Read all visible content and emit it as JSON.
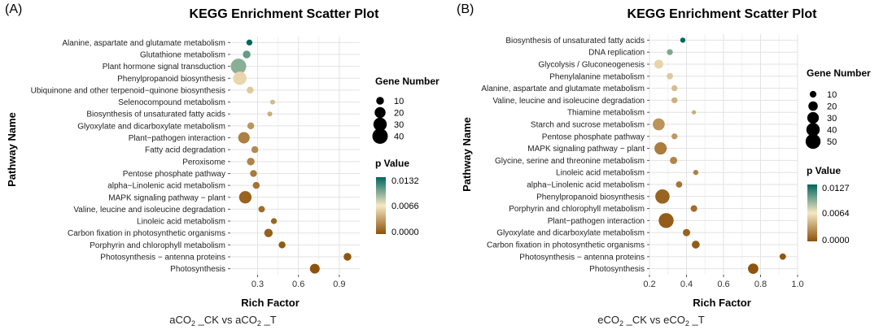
{
  "chart_data": [
    {
      "type": "scatter",
      "panel_label": "(A)",
      "title": "KEGG Enrichment Scatter Plot",
      "xlabel": "Rich Factor",
      "ylabel": "Pathway Name",
      "caption": "aCO2 _CK vs aCO2 _T",
      "caption_parts": {
        "a": "aCO",
        "b": "2",
        "c": " _CK vs aCO",
        "d": "2",
        "e": " _T"
      },
      "xlim": [
        0.1,
        1.05
      ],
      "xticks": [
        0.3,
        0.6,
        0.9
      ],
      "xtick_labels": [
        "0.3",
        "0.6",
        "0.9"
      ],
      "grid": true,
      "size_legend": {
        "title": "Gene Number",
        "values": [
          10,
          20,
          30,
          40
        ],
        "labels": [
          "10",
          "20",
          "30",
          "40"
        ]
      },
      "color_legend": {
        "title": "p Value",
        "max": 0.0132,
        "labels": [
          "0.0132",
          "0.0066",
          "0.0000"
        ],
        "colors": [
          "#8c510a",
          "#f6e8c3",
          "#01665e"
        ]
      },
      "points": [
        {
          "pathway": "Alanine, aspartate and glutamate metabolism",
          "rich_factor": 0.24,
          "gene_number": 6,
          "p_value": 0.0132
        },
        {
          "pathway": "Glutathione metabolism",
          "rich_factor": 0.22,
          "gene_number": 10,
          "p_value": 0.0105
        },
        {
          "pathway": "Plant hormone signal transduction",
          "rich_factor": 0.16,
          "gene_number": 40,
          "p_value": 0.0095
        },
        {
          "pathway": "Phenylpropanoid biosynthesis",
          "rich_factor": 0.17,
          "gene_number": 30,
          "p_value": 0.0058
        },
        {
          "pathway": "Ubiquinone and other terpenoid−quinone biosynthesis",
          "rich_factor": 0.245,
          "gene_number": 8,
          "p_value": 0.0052
        },
        {
          "pathway": "Selenocompound metabolism",
          "rich_factor": 0.41,
          "gene_number": 4,
          "p_value": 0.0045
        },
        {
          "pathway": "Biosynthesis of unsaturated fatty acids",
          "rich_factor": 0.39,
          "gene_number": 4,
          "p_value": 0.004
        },
        {
          "pathway": "Glyoxylate and dicarboxylate metabolism",
          "rich_factor": 0.25,
          "gene_number": 8,
          "p_value": 0.003
        },
        {
          "pathway": "Plant−pathogen interaction",
          "rich_factor": 0.2,
          "gene_number": 22,
          "p_value": 0.002
        },
        {
          "pathway": "Fatty acid degradation",
          "rich_factor": 0.28,
          "gene_number": 8,
          "p_value": 0.0025
        },
        {
          "pathway": "Peroxisome",
          "rich_factor": 0.25,
          "gene_number": 10,
          "p_value": 0.0022
        },
        {
          "pathway": "Pentose phosphate pathway",
          "rich_factor": 0.27,
          "gene_number": 8,
          "p_value": 0.0018
        },
        {
          "pathway": "alpha−Linolenic acid metabolism",
          "rich_factor": 0.29,
          "gene_number": 8,
          "p_value": 0.0015
        },
        {
          "pathway": "MAPK signaling pathway − plant",
          "rich_factor": 0.21,
          "gene_number": 26,
          "p_value": 0.0008
        },
        {
          "pathway": "Valine, leucine and isoleucine degradation",
          "rich_factor": 0.33,
          "gene_number": 7,
          "p_value": 0.0012
        },
        {
          "pathway": "Linoleic acid metabolism",
          "rich_factor": 0.42,
          "gene_number": 6,
          "p_value": 0.0009
        },
        {
          "pathway": "Carbon fixation in photosynthetic organisms",
          "rich_factor": 0.38,
          "gene_number": 12,
          "p_value": 0.0006
        },
        {
          "pathway": "Porphyrin and chlorophyll metabolism",
          "rich_factor": 0.48,
          "gene_number": 8,
          "p_value": 0.0004
        },
        {
          "pathway": "Photosynthesis − antenna proteins",
          "rich_factor": 0.96,
          "gene_number": 10,
          "p_value": 0.0002
        },
        {
          "pathway": "Photosynthesis",
          "rich_factor": 0.72,
          "gene_number": 16,
          "p_value": 0.0001
        }
      ]
    },
    {
      "type": "scatter",
      "panel_label": "(B)",
      "title": "KEGG Enrichment Scatter Plot",
      "xlabel": "Rich Factor",
      "ylabel": "Pathway Name",
      "caption": "eCO2 _CK vs eCO2 _T",
      "caption_parts": {
        "a": "eCO",
        "b": "2",
        "c": " _CK vs eCO",
        "d": "2",
        "e": " _T"
      },
      "xlim": [
        0.2,
        1.0
      ],
      "xticks": [
        0.2,
        0.4,
        0.6,
        0.8,
        1.0
      ],
      "xtick_labels": [
        "0.2",
        "0.4",
        "0.6",
        "0.8",
        "1.0"
      ],
      "grid": true,
      "size_legend": {
        "title": "Gene Number",
        "values": [
          10,
          20,
          30,
          40,
          50
        ],
        "labels": [
          "10",
          "20",
          "30",
          "40",
          "50"
        ]
      },
      "color_legend": {
        "title": "p Value",
        "max": 0.0127,
        "labels": [
          "0.0127",
          "0.0064",
          "0.0000"
        ],
        "colors": [
          "#8c510a",
          "#f6e8c3",
          "#01665e"
        ]
      },
      "points": [
        {
          "pathway": "Biosynthesis of unsaturated fatty acids",
          "rich_factor": 0.38,
          "gene_number": 6,
          "p_value": 0.0127
        },
        {
          "pathway": "DNA replication",
          "rich_factor": 0.31,
          "gene_number": 8,
          "p_value": 0.0095
        },
        {
          "pathway": "Glycolysis / Gluconeogenesis",
          "rich_factor": 0.25,
          "gene_number": 18,
          "p_value": 0.0055
        },
        {
          "pathway": "Phenylalanine metabolism",
          "rich_factor": 0.31,
          "gene_number": 9,
          "p_value": 0.005
        },
        {
          "pathway": "Alanine, aspartate and glutamate metabolism",
          "rich_factor": 0.335,
          "gene_number": 8,
          "p_value": 0.0045
        },
        {
          "pathway": "Valine, leucine and isoleucine degradation",
          "rich_factor": 0.335,
          "gene_number": 8,
          "p_value": 0.004
        },
        {
          "pathway": "Thiamine metabolism",
          "rich_factor": 0.44,
          "gene_number": 4,
          "p_value": 0.0038
        },
        {
          "pathway": "Starch and sucrose metabolism",
          "rich_factor": 0.25,
          "gene_number": 32,
          "p_value": 0.0028
        },
        {
          "pathway": "Pentose phosphate pathway",
          "rich_factor": 0.335,
          "gene_number": 8,
          "p_value": 0.003
        },
        {
          "pathway": "MAPK signaling pathway − plant",
          "rich_factor": 0.26,
          "gene_number": 34,
          "p_value": 0.0018
        },
        {
          "pathway": "Glycine, serine and threonine metabolism",
          "rich_factor": 0.33,
          "gene_number": 12,
          "p_value": 0.0022
        },
        {
          "pathway": "Linoleic acid metabolism",
          "rich_factor": 0.45,
          "gene_number": 6,
          "p_value": 0.002
        },
        {
          "pathway": "alpha−Linolenic acid metabolism",
          "rich_factor": 0.36,
          "gene_number": 9,
          "p_value": 0.0015
        },
        {
          "pathway": "Phenylpropanoid biosynthesis",
          "rich_factor": 0.27,
          "gene_number": 46,
          "p_value": 0.0008
        },
        {
          "pathway": "Porphyrin and chlorophyll metabolism",
          "rich_factor": 0.44,
          "gene_number": 10,
          "p_value": 0.0012
        },
        {
          "pathway": "Plant−pathogen interaction",
          "rich_factor": 0.29,
          "gene_number": 50,
          "p_value": 0.0005
        },
        {
          "pathway": "Glyoxylate and dicarboxylate metabolism",
          "rich_factor": 0.4,
          "gene_number": 12,
          "p_value": 0.0007
        },
        {
          "pathway": "Carbon fixation in photosynthetic organisms",
          "rich_factor": 0.45,
          "gene_number": 14,
          "p_value": 0.0004
        },
        {
          "pathway": "Photosynthesis − antenna proteins",
          "rich_factor": 0.92,
          "gene_number": 9,
          "p_value": 0.0002
        },
        {
          "pathway": "Photosynthesis",
          "rich_factor": 0.76,
          "gene_number": 24,
          "p_value": 0.0001
        }
      ]
    }
  ]
}
